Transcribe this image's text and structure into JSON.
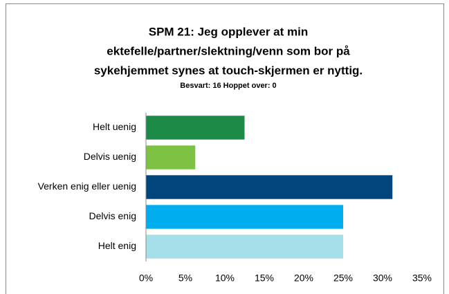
{
  "chart_data": {
    "type": "bar",
    "orientation": "horizontal",
    "title": [
      "SPM 21: Jeg opplever at min",
      "ektefelle/partner/slektning/venn som bor på",
      "sykehjemmet synes at touch-skjermen er nyttig."
    ],
    "subtitle": "Besvart: 16  Hoppet over: 0",
    "categories": [
      "Helt uenig",
      "Delvis uenig",
      "Verken enig eller uenig",
      "Delvis enig",
      "Helt enig"
    ],
    "values": [
      12.5,
      6.25,
      31.25,
      25,
      25
    ],
    "colors": [
      "#1b8b47",
      "#7dc242",
      "#00457c",
      "#00aeef",
      "#a6dfea"
    ],
    "xlim": [
      0,
      35
    ],
    "xticks": [
      {
        "value": 0,
        "label": "0%"
      },
      {
        "value": 5,
        "label": "5%"
      },
      {
        "value": 10,
        "label": "10%"
      },
      {
        "value": 15,
        "label": "15%"
      },
      {
        "value": 20,
        "label": "20%"
      },
      {
        "value": 25,
        "label": "25%"
      },
      {
        "value": 30,
        "label": "30%"
      },
      {
        "value": 35,
        "label": "35%"
      }
    ],
    "grid": false
  }
}
